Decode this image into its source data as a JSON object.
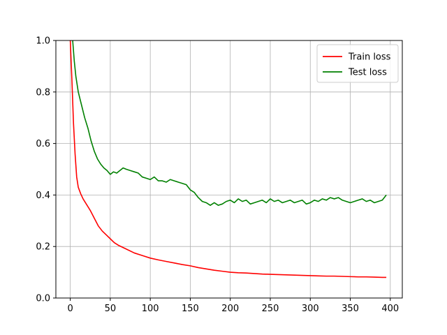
{
  "chart_data": {
    "type": "line",
    "xlim": [
      -18,
      415
    ],
    "ylim": [
      0.0,
      1.0
    ],
    "x_ticks": [
      0,
      50,
      100,
      150,
      200,
      250,
      300,
      350,
      400
    ],
    "y_ticks": [
      0.0,
      0.2,
      0.4,
      0.6,
      0.8,
      1.0
    ],
    "x_tick_labels": [
      "0",
      "50",
      "100",
      "150",
      "200",
      "250",
      "300",
      "350",
      "400"
    ],
    "y_tick_labels": [
      "0.0",
      "0.2",
      "0.4",
      "0.6",
      "0.8",
      "1.0"
    ],
    "grid": true,
    "legend_position": "top-right",
    "series": [
      {
        "name": "Train loss",
        "color": "#ff0000",
        "points": [
          [
            0,
            1.0
          ],
          [
            2,
            0.85
          ],
          [
            4,
            0.68
          ],
          [
            6,
            0.56
          ],
          [
            8,
            0.47
          ],
          [
            10,
            0.43
          ],
          [
            13,
            0.405
          ],
          [
            16,
            0.385
          ],
          [
            20,
            0.365
          ],
          [
            25,
            0.34
          ],
          [
            30,
            0.31
          ],
          [
            35,
            0.28
          ],
          [
            40,
            0.26
          ],
          [
            45,
            0.245
          ],
          [
            50,
            0.23
          ],
          [
            55,
            0.215
          ],
          [
            60,
            0.205
          ],
          [
            70,
            0.19
          ],
          [
            80,
            0.175
          ],
          [
            90,
            0.165
          ],
          [
            100,
            0.155
          ],
          [
            110,
            0.148
          ],
          [
            120,
            0.142
          ],
          [
            130,
            0.136
          ],
          [
            140,
            0.13
          ],
          [
            150,
            0.125
          ],
          [
            160,
            0.118
          ],
          [
            170,
            0.113
          ],
          [
            180,
            0.108
          ],
          [
            190,
            0.104
          ],
          [
            200,
            0.1
          ],
          [
            210,
            0.098
          ],
          [
            220,
            0.097
          ],
          [
            230,
            0.095
          ],
          [
            240,
            0.093
          ],
          [
            250,
            0.092
          ],
          [
            260,
            0.091
          ],
          [
            270,
            0.09
          ],
          [
            280,
            0.089
          ],
          [
            290,
            0.088
          ],
          [
            300,
            0.087
          ],
          [
            310,
            0.086
          ],
          [
            320,
            0.085
          ],
          [
            330,
            0.085
          ],
          [
            340,
            0.084
          ],
          [
            350,
            0.083
          ],
          [
            360,
            0.082
          ],
          [
            370,
            0.082
          ],
          [
            380,
            0.081
          ],
          [
            390,
            0.08
          ],
          [
            395,
            0.08
          ]
        ]
      },
      {
        "name": "Test loss",
        "color": "#008000",
        "points": [
          [
            3,
            1.0
          ],
          [
            5,
            0.92
          ],
          [
            7,
            0.86
          ],
          [
            10,
            0.8
          ],
          [
            14,
            0.75
          ],
          [
            18,
            0.7
          ],
          [
            22,
            0.66
          ],
          [
            26,
            0.61
          ],
          [
            30,
            0.57
          ],
          [
            34,
            0.54
          ],
          [
            38,
            0.52
          ],
          [
            42,
            0.505
          ],
          [
            46,
            0.495
          ],
          [
            50,
            0.48
          ],
          [
            54,
            0.49
          ],
          [
            58,
            0.485
          ],
          [
            62,
            0.495
          ],
          [
            66,
            0.505
          ],
          [
            70,
            0.5
          ],
          [
            75,
            0.495
          ],
          [
            80,
            0.49
          ],
          [
            85,
            0.485
          ],
          [
            90,
            0.47
          ],
          [
            95,
            0.465
          ],
          [
            100,
            0.46
          ],
          [
            105,
            0.47
          ],
          [
            110,
            0.455
          ],
          [
            115,
            0.455
          ],
          [
            120,
            0.45
          ],
          [
            125,
            0.46
          ],
          [
            130,
            0.455
          ],
          [
            135,
            0.45
          ],
          [
            140,
            0.445
          ],
          [
            145,
            0.44
          ],
          [
            150,
            0.42
          ],
          [
            155,
            0.41
          ],
          [
            160,
            0.39
          ],
          [
            165,
            0.375
          ],
          [
            170,
            0.37
          ],
          [
            175,
            0.36
          ],
          [
            180,
            0.37
          ],
          [
            185,
            0.36
          ],
          [
            190,
            0.365
          ],
          [
            195,
            0.375
          ],
          [
            200,
            0.38
          ],
          [
            205,
            0.37
          ],
          [
            210,
            0.385
          ],
          [
            215,
            0.375
          ],
          [
            220,
            0.38
          ],
          [
            225,
            0.365
          ],
          [
            230,
            0.37
          ],
          [
            235,
            0.375
          ],
          [
            240,
            0.38
          ],
          [
            245,
            0.37
          ],
          [
            250,
            0.385
          ],
          [
            255,
            0.375
          ],
          [
            260,
            0.38
          ],
          [
            265,
            0.37
          ],
          [
            270,
            0.375
          ],
          [
            275,
            0.38
          ],
          [
            280,
            0.37
          ],
          [
            285,
            0.375
          ],
          [
            290,
            0.38
          ],
          [
            295,
            0.365
          ],
          [
            300,
            0.37
          ],
          [
            305,
            0.38
          ],
          [
            310,
            0.375
          ],
          [
            315,
            0.385
          ],
          [
            320,
            0.38
          ],
          [
            325,
            0.39
          ],
          [
            330,
            0.385
          ],
          [
            335,
            0.39
          ],
          [
            340,
            0.38
          ],
          [
            345,
            0.375
          ],
          [
            350,
            0.37
          ],
          [
            355,
            0.375
          ],
          [
            360,
            0.38
          ],
          [
            365,
            0.385
          ],
          [
            370,
            0.375
          ],
          [
            375,
            0.38
          ],
          [
            380,
            0.37
          ],
          [
            385,
            0.375
          ],
          [
            390,
            0.38
          ],
          [
            395,
            0.4
          ]
        ]
      }
    ]
  }
}
